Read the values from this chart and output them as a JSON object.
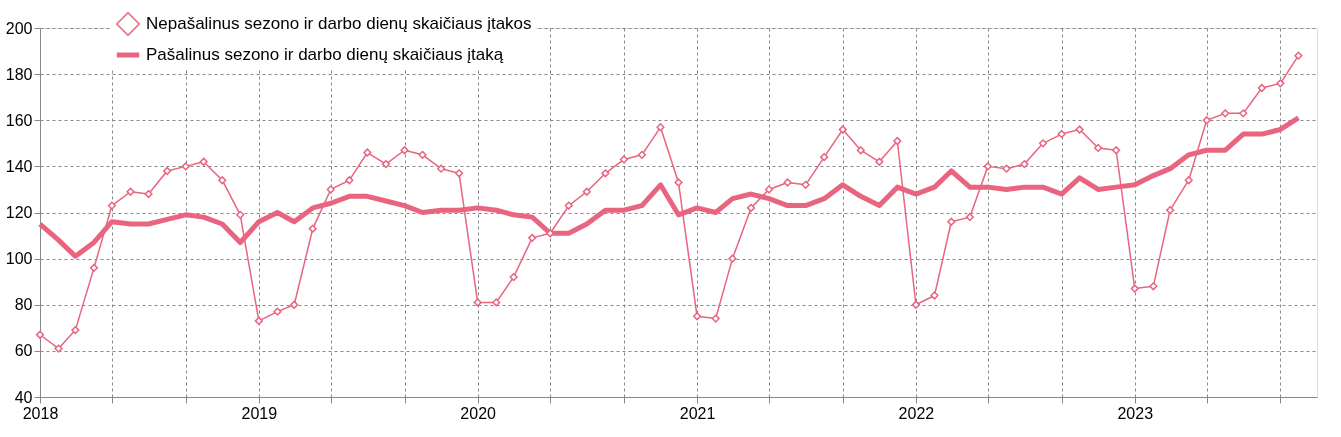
{
  "chart_data": {
    "type": "line",
    "x": [
      "2018-01",
      "2018-02",
      "2018-03",
      "2018-04",
      "2018-05",
      "2018-06",
      "2018-07",
      "2018-08",
      "2018-09",
      "2018-10",
      "2018-11",
      "2018-12",
      "2019-01",
      "2019-02",
      "2019-03",
      "2019-04",
      "2019-05",
      "2019-06",
      "2019-07",
      "2019-08",
      "2019-09",
      "2019-10",
      "2019-11",
      "2019-12",
      "2020-01",
      "2020-02",
      "2020-03",
      "2020-04",
      "2020-05",
      "2020-06",
      "2020-07",
      "2020-08",
      "2020-09",
      "2020-10",
      "2020-11",
      "2020-12",
      "2021-01",
      "2021-02",
      "2021-03",
      "2021-04",
      "2021-05",
      "2021-06",
      "2021-07",
      "2021-08",
      "2021-09",
      "2021-10",
      "2021-11",
      "2021-12",
      "2022-01",
      "2022-02",
      "2022-03",
      "2022-04",
      "2022-05",
      "2022-06",
      "2022-07",
      "2022-08",
      "2022-09",
      "2022-10",
      "2022-11",
      "2022-12",
      "2023-01",
      "2023-02",
      "2023-03",
      "2023-04",
      "2023-05",
      "2023-06",
      "2023-07",
      "2023-08",
      "2023-09",
      "2023-10"
    ],
    "series": [
      {
        "name": "Nepašalinus sezono ir darbo dienų skaičiaus įtakos",
        "color": "#e8647f",
        "marker": "diamond",
        "values": [
          67,
          61,
          69,
          96,
          123,
          129,
          128,
          138,
          140,
          142,
          134,
          119,
          73,
          77,
          80,
          113,
          130,
          134,
          146,
          141,
          147,
          145,
          139,
          137,
          81,
          81,
          92,
          109,
          111,
          123,
          129,
          137,
          143,
          145,
          157,
          133,
          75,
          74,
          100,
          122,
          130,
          133,
          132,
          144,
          156,
          147,
          142,
          151,
          80,
          84,
          116,
          118,
          140,
          139,
          141,
          150,
          154,
          156,
          148,
          147,
          87,
          88,
          121,
          134,
          160,
          163,
          163,
          174,
          176,
          188
        ]
      },
      {
        "name": "Pašalinus sezono ir darbo dienų skaičiaus įtaką",
        "color": "#e8647f",
        "marker": "none",
        "values": [
          115,
          108,
          101,
          107,
          116,
          115,
          115,
          117,
          119,
          118,
          115,
          107,
          116,
          120,
          116,
          122,
          124,
          127,
          127,
          125,
          123,
          120,
          121,
          121,
          122,
          121,
          119,
          118,
          111,
          111,
          115,
          121,
          121,
          123,
          132,
          119,
          122,
          120,
          126,
          128,
          126,
          123,
          123,
          126,
          132,
          127,
          123,
          131,
          128,
          131,
          138,
          131,
          131,
          130,
          131,
          131,
          128,
          135,
          130,
          131,
          132,
          136,
          139,
          145,
          147,
          147,
          154,
          154,
          156,
          161
        ]
      }
    ],
    "xlim": [
      "2018-01",
      "2023-11"
    ],
    "xticks": [
      {
        "value": "2018-01",
        "label": "2018"
      },
      {
        "value": "2018-05",
        "label": null
      },
      {
        "value": "2018-09",
        "label": null
      },
      {
        "value": "2019-01",
        "label": "2019"
      },
      {
        "value": "2019-05",
        "label": null
      },
      {
        "value": "2019-09",
        "label": null
      },
      {
        "value": "2020-01",
        "label": "2020"
      },
      {
        "value": "2020-05",
        "label": null
      },
      {
        "value": "2020-09",
        "label": null
      },
      {
        "value": "2021-01",
        "label": "2021"
      },
      {
        "value": "2021-05",
        "label": null
      },
      {
        "value": "2021-09",
        "label": null
      },
      {
        "value": "2022-01",
        "label": "2022"
      },
      {
        "value": "2022-05",
        "label": null
      },
      {
        "value": "2022-09",
        "label": null
      },
      {
        "value": "2023-01",
        "label": "2023"
      },
      {
        "value": "2023-05",
        "label": null
      },
      {
        "value": "2023-09",
        "label": null
      }
    ],
    "ylim": [
      40,
      200
    ],
    "yticks": [
      40,
      60,
      80,
      100,
      120,
      140,
      160,
      180,
      200
    ],
    "grid": true,
    "legend": "top left",
    "line_style": "solid"
  }
}
